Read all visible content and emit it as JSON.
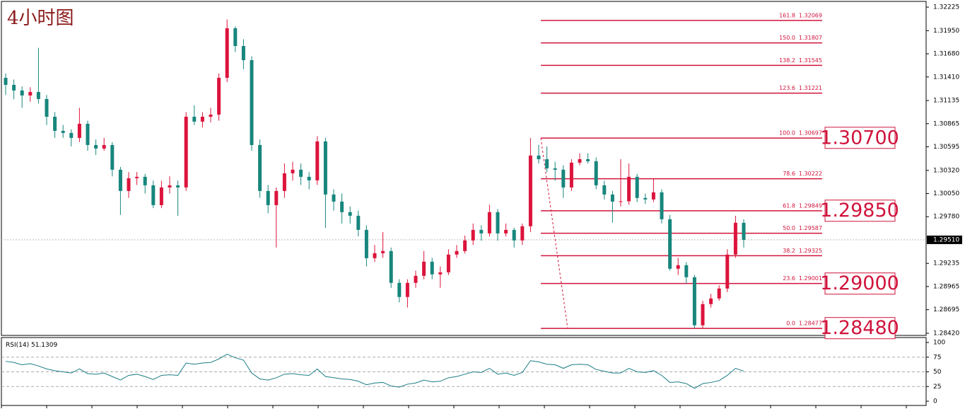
{
  "chart_data": {
    "type": "candlestick",
    "title": "4小时图",
    "up_color": "#dc143c",
    "down_color": "#18867d",
    "ylim": [
      1.28395,
      1.3225
    ],
    "yticks": [
      1.32225,
      {
        "value": 1.3195,
        "label": "1.31950"
      },
      {
        "value": 1.3168,
        "label": "1.31680"
      },
      {
        "value": 1.3141,
        "label": "1.31410"
      },
      1.31135,
      1.30865,
      1.30595,
      {
        "value": 1.3032,
        "label": "1.30320"
      },
      {
        "value": 1.3005,
        "label": "1.30050"
      },
      {
        "value": 1.2978,
        "label": "1.29780"
      },
      1.29235,
      1.28965,
      1.28695,
      {
        "value": 1.2842,
        "label": "1.28420"
      }
    ],
    "last_price": {
      "value": 1.2951,
      "label": "1.29510"
    },
    "candles": [
      [
        1.314,
        1.3145,
        1.312,
        1.31318
      ],
      [
        1.31318,
        1.3138,
        1.3115,
        1.31252
      ],
      [
        1.31252,
        1.313,
        1.3105,
        1.31194
      ],
      [
        1.31194,
        1.3129,
        1.3112,
        1.31235
      ],
      [
        1.31235,
        1.3175,
        1.311,
        1.31153
      ],
      [
        1.31153,
        1.312,
        1.3085,
        1.30946
      ],
      [
        1.30946,
        1.31,
        1.307,
        1.30781
      ],
      [
        1.30781,
        1.3085,
        1.307,
        1.30757
      ],
      [
        1.30757,
        1.308,
        1.306,
        1.30699
      ],
      [
        1.30699,
        1.3105,
        1.3065,
        1.30864
      ],
      [
        1.30864,
        1.309,
        1.3055,
        1.30616
      ],
      [
        1.30616,
        1.3068,
        1.305,
        1.30575
      ],
      [
        1.30575,
        1.307,
        1.3055,
        1.30616
      ],
      [
        1.30616,
        1.3065,
        1.3025,
        1.30328
      ],
      [
        1.30328,
        1.3036,
        1.298,
        1.3008
      ],
      [
        1.3008,
        1.303,
        1.3,
        1.30229
      ],
      [
        1.30229,
        1.303,
        1.3015,
        1.30245
      ],
      [
        1.30245,
        1.3028,
        1.3005,
        1.30146
      ],
      [
        1.30146,
        1.302,
        1.2988,
        1.29915
      ],
      [
        1.29915,
        1.302,
        1.2988,
        1.30121
      ],
      [
        1.30121,
        1.3025,
        1.3005,
        1.30146
      ],
      [
        1.30146,
        1.302,
        1.2979,
        1.30121
      ],
      [
        1.30121,
        1.31,
        1.3008,
        1.30946
      ],
      [
        1.30946,
        1.3108,
        1.3085,
        1.30889
      ],
      [
        1.30889,
        1.31,
        1.3082,
        1.30946
      ],
      [
        1.30946,
        1.3105,
        1.3088,
        1.30971
      ],
      [
        1.30971,
        1.3145,
        1.309,
        1.314
      ],
      [
        1.314,
        1.3208,
        1.3135,
        1.31978
      ],
      [
        1.31978,
        1.32,
        1.317,
        1.31771
      ],
      [
        1.31771,
        1.3185,
        1.315,
        1.31606
      ],
      [
        1.31606,
        1.3165,
        1.3055,
        1.30616
      ],
      [
        1.30616,
        1.3068,
        1.3,
        1.3008
      ],
      [
        1.3008,
        1.3015,
        1.2982,
        1.29915
      ],
      [
        1.29915,
        1.3012,
        1.2942,
        1.3008
      ],
      [
        1.3008,
        1.304,
        1.3,
        1.30286
      ],
      [
        1.30286,
        1.3042,
        1.302,
        1.30328
      ],
      [
        1.30328,
        1.304,
        1.3015,
        1.30245
      ],
      [
        1.30245,
        1.303,
        1.301,
        1.30204
      ],
      [
        1.30204,
        1.3072,
        1.3015,
        1.30658
      ],
      [
        1.30658,
        1.307,
        1.2965,
        1.30039
      ],
      [
        1.30039,
        1.301,
        1.2985,
        1.29956
      ],
      [
        1.29956,
        1.3005,
        1.297,
        1.29833
      ],
      [
        1.29833,
        1.299,
        1.297,
        1.29791
      ],
      [
        1.29791,
        1.2985,
        1.2955,
        1.29626
      ],
      [
        1.29626,
        1.2968,
        1.292,
        1.29296
      ],
      [
        1.29296,
        1.2945,
        1.2925,
        1.29354
      ],
      [
        1.29354,
        1.296,
        1.293,
        1.29379
      ],
      [
        1.29379,
        1.2942,
        1.2895,
        1.29008
      ],
      [
        1.29008,
        1.2905,
        1.2878,
        1.28843
      ],
      [
        1.28843,
        1.2905,
        1.2872,
        1.29008
      ],
      [
        1.29008,
        1.2915,
        1.2895,
        1.2909
      ],
      [
        1.2909,
        1.2938,
        1.2905,
        1.29255
      ],
      [
        1.29255,
        1.293,
        1.2905,
        1.29107
      ],
      [
        1.29107,
        1.292,
        1.2895,
        1.29131
      ],
      [
        1.29131,
        1.294,
        1.291,
        1.29338
      ],
      [
        1.29338,
        1.2945,
        1.293,
        1.29379
      ],
      [
        1.29379,
        1.2956,
        1.2935,
        1.29503
      ],
      [
        1.29503,
        1.297,
        1.2945,
        1.29626
      ],
      [
        1.29626,
        1.2968,
        1.295,
        1.29585
      ],
      [
        1.29585,
        1.2992,
        1.2955,
        1.29833
      ],
      [
        1.29833,
        1.2987,
        1.295,
        1.29585
      ],
      [
        1.29585,
        1.297,
        1.2955,
        1.29626
      ],
      [
        1.29626,
        1.2965,
        1.2942,
        1.29503
      ],
      [
        1.29503,
        1.297,
        1.2945,
        1.29668
      ],
      [
        1.29668,
        1.30697,
        1.296,
        1.30493
      ],
      [
        1.30493,
        1.3062,
        1.304,
        1.30451
      ],
      [
        1.30451,
        1.306,
        1.303,
        1.30344
      ],
      [
        1.30344,
        1.3042,
        1.302,
        1.30328
      ],
      [
        1.30328,
        1.3038,
        1.3,
        1.30121
      ],
      [
        1.30121,
        1.3045,
        1.3008,
        1.3041
      ],
      [
        1.3041,
        1.3052,
        1.3038,
        1.30451
      ],
      [
        1.30451,
        1.3052,
        1.304,
        1.30427
      ],
      [
        1.30427,
        1.3047,
        1.301,
        1.30146
      ],
      [
        1.30146,
        1.302,
        1.2998,
        1.30039
      ],
      [
        1.30039,
        1.3008,
        1.2971,
        1.29956
      ],
      [
        1.29956,
        1.3045,
        1.299,
        1.2996
      ],
      [
        1.2996,
        1.304,
        1.2992,
        1.30245
      ],
      [
        1.30245,
        1.3028,
        1.2995,
        1.29998
      ],
      [
        1.29998,
        1.3005,
        1.2993,
        1.29981
      ],
      [
        1.29981,
        1.30222,
        1.2995,
        1.30064
      ],
      [
        1.30064,
        1.301,
        1.297,
        1.2975
      ],
      [
        1.2975,
        1.298,
        1.2915,
        1.29173
      ],
      [
        1.29173,
        1.293,
        1.291,
        1.29214
      ],
      [
        1.29214,
        1.2925,
        1.29,
        1.29074
      ],
      [
        1.29074,
        1.291,
        1.28477,
        1.28513
      ],
      [
        1.28513,
        1.288,
        1.2848,
        1.2876
      ],
      [
        1.2876,
        1.2888,
        1.2872,
        1.28826
      ],
      [
        1.28826,
        1.2898,
        1.288,
        1.28942
      ],
      [
        1.28942,
        1.294,
        1.289,
        1.29338
      ],
      [
        1.29338,
        1.2979,
        1.293,
        1.29709
      ],
      [
        1.29709,
        1.2975,
        1.2942,
        1.2951
      ]
    ],
    "fib_levels": [
      {
        "ratio": "161.8",
        "price": 1.32069
      },
      {
        "ratio": "150.0",
        "price": 1.31807
      },
      {
        "ratio": "138.2",
        "price": 1.31545
      },
      {
        "ratio": "123.6",
        "price": 1.31221
      },
      {
        "ratio": "100.0",
        "price": 1.30697
      },
      {
        "ratio": "78.6",
        "price": 1.30222
      },
      {
        "ratio": "61.8",
        "price": 1.29849
      },
      {
        "ratio": "50.0",
        "price": 1.29587
      },
      {
        "ratio": "38.2",
        "price": 1.29325
      },
      {
        "ratio": "23.6",
        "price": 1.29001
      },
      {
        "ratio": "0.0",
        "price": 1.28477
      }
    ],
    "fib_color": "#d0143c",
    "key_levels": [
      1.307,
      1.2985,
      1.29,
      1.2848
    ],
    "key_level_labels": [
      "1.30700",
      "1.29850",
      "1.29000",
      "1.28480"
    ],
    "rsi": {
      "name": "RSI(14)",
      "value": 51.1309,
      "color": "#1b7d86",
      "ylim": [
        0,
        100
      ],
      "yticks": [
        100,
        75,
        50,
        25,
        0
      ],
      "levels": [
        75,
        50,
        25
      ],
      "values": [
        68,
        66,
        62,
        64,
        60,
        55,
        52,
        50,
        48,
        55,
        47,
        46,
        48,
        42,
        36,
        44,
        46,
        42,
        37,
        44,
        45,
        44,
        65,
        63,
        65,
        66,
        72,
        80,
        74,
        70,
        48,
        38,
        36,
        40,
        46,
        47,
        45,
        44,
        55,
        42,
        40,
        38,
        37,
        34,
        28,
        31,
        32,
        26,
        24,
        29,
        31,
        36,
        33,
        34,
        40,
        42,
        46,
        50,
        49,
        56,
        46,
        48,
        44,
        49,
        69,
        67,
        63,
        62,
        56,
        62,
        63,
        62,
        54,
        51,
        48,
        48,
        56,
        50,
        49,
        52,
        44,
        32,
        33,
        30,
        22,
        30,
        32,
        35,
        44,
        56,
        51.1309
      ]
    }
  }
}
